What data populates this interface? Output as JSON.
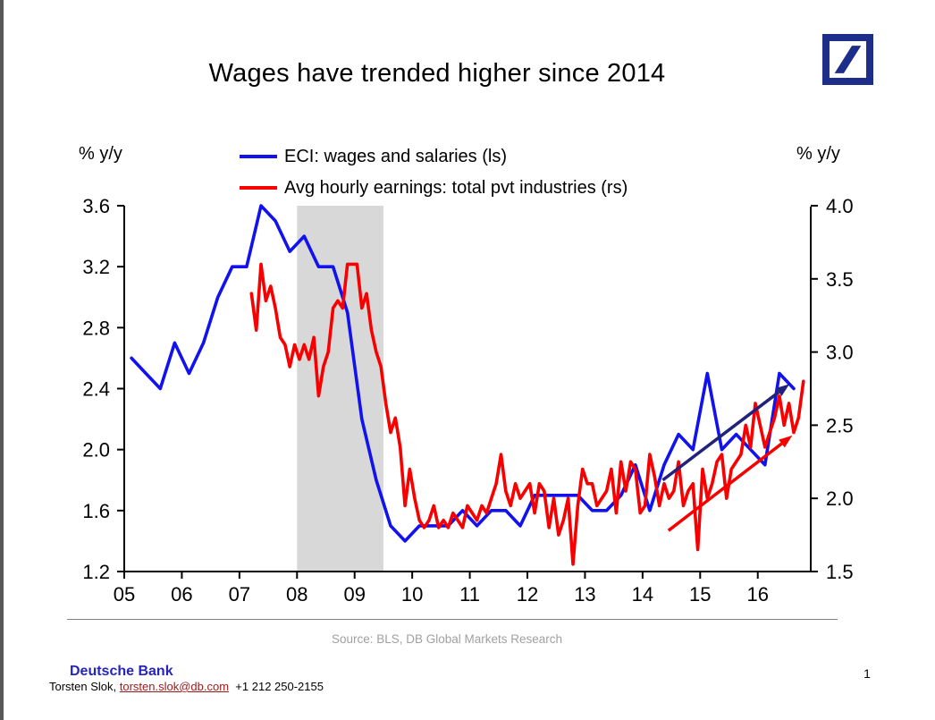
{
  "page": {
    "title": "Wages have trended higher since 2014",
    "page_number": "1"
  },
  "logo": {
    "name": "deutsche-bank-logo",
    "color": "#1C2D8A"
  },
  "legend": {
    "items": [
      {
        "label": "ECI: wages and salaries (ls)",
        "color": "#1212EE"
      },
      {
        "label": "Avg hourly earnings: total pvt industries (rs)",
        "color": "#F80000"
      }
    ]
  },
  "chart_data": {
    "type": "line",
    "title": "Wages have trended higher since 2014",
    "source": "Source: BLS, DB Global Markets Research",
    "grid": false,
    "legend_position": "top",
    "left_axis": {
      "unit": "% y/y",
      "range": [
        1.2,
        3.6
      ],
      "tick_values": [
        3.6,
        3.2,
        2.8,
        2.4,
        2.0,
        1.6,
        1.2
      ],
      "tick_labels": [
        "3.6",
        "3.2",
        "2.8",
        "2.4",
        "2.0",
        "1.6",
        "1.2"
      ]
    },
    "right_axis": {
      "unit": "% y/y",
      "range": [
        1.5,
        4.0
      ],
      "tick_values": [
        4.0,
        3.5,
        3.0,
        2.5,
        2.0,
        1.5
      ],
      "tick_labels": [
        "4.0",
        "3.5",
        "3.0",
        "2.5",
        "2.0",
        "1.5"
      ]
    },
    "x_axis": {
      "range": [
        2005,
        2016.92
      ],
      "tick_years": [
        2005,
        2006,
        2007,
        2008,
        2009,
        2010,
        2011,
        2012,
        2013,
        2014,
        2015,
        2016
      ],
      "labels": [
        "05",
        "06",
        "07",
        "08",
        "09",
        "10",
        "11",
        "12",
        "13",
        "14",
        "15",
        "16"
      ]
    },
    "recession_band": {
      "start": 2008.0,
      "end": 2009.5,
      "color": "#D8D8D8"
    },
    "series": [
      {
        "name": "ECI: wages and salaries (ls)",
        "axis": "left",
        "color": "#1212EE",
        "frequency": "quarterly",
        "points": [
          [
            2005.125,
            2.6
          ],
          [
            2005.375,
            2.5
          ],
          [
            2005.625,
            2.4
          ],
          [
            2005.875,
            2.7
          ],
          [
            2006.125,
            2.5
          ],
          [
            2006.375,
            2.7
          ],
          [
            2006.625,
            3.0
          ],
          [
            2006.875,
            3.2
          ],
          [
            2007.125,
            3.2
          ],
          [
            2007.375,
            3.6
          ],
          [
            2007.625,
            3.5
          ],
          [
            2007.875,
            3.3
          ],
          [
            2008.125,
            3.4
          ],
          [
            2008.375,
            3.2
          ],
          [
            2008.625,
            3.2
          ],
          [
            2008.875,
            2.9
          ],
          [
            2009.125,
            2.2
          ],
          [
            2009.375,
            1.8
          ],
          [
            2009.625,
            1.5
          ],
          [
            2009.875,
            1.4
          ],
          [
            2010.125,
            1.5
          ],
          [
            2010.375,
            1.5
          ],
          [
            2010.625,
            1.5
          ],
          [
            2010.875,
            1.6
          ],
          [
            2011.125,
            1.5
          ],
          [
            2011.375,
            1.6
          ],
          [
            2011.625,
            1.6
          ],
          [
            2011.875,
            1.5
          ],
          [
            2012.125,
            1.7
          ],
          [
            2012.375,
            1.7
          ],
          [
            2012.625,
            1.7
          ],
          [
            2012.875,
            1.7
          ],
          [
            2013.125,
            1.6
          ],
          [
            2013.375,
            1.6
          ],
          [
            2013.625,
            1.7
          ],
          [
            2013.875,
            1.9
          ],
          [
            2014.125,
            1.6
          ],
          [
            2014.375,
            1.9
          ],
          [
            2014.625,
            2.1
          ],
          [
            2014.875,
            2.0
          ],
          [
            2015.125,
            2.5
          ],
          [
            2015.375,
            2.0
          ],
          [
            2015.625,
            2.1
          ],
          [
            2015.875,
            2.0
          ],
          [
            2016.125,
            1.9
          ],
          [
            2016.375,
            2.5
          ],
          [
            2016.625,
            2.4
          ]
        ]
      },
      {
        "name": "Avg hourly earnings: total pvt industries (rs)",
        "axis": "right",
        "color": "#F80000",
        "frequency": "monthly",
        "points": [
          [
            2007.208,
            3.4
          ],
          [
            2007.292,
            3.15
          ],
          [
            2007.375,
            3.6
          ],
          [
            2007.458,
            3.35
          ],
          [
            2007.542,
            3.45
          ],
          [
            2007.625,
            3.3
          ],
          [
            2007.708,
            3.1
          ],
          [
            2007.792,
            3.05
          ],
          [
            2007.875,
            2.9
          ],
          [
            2007.958,
            3.05
          ],
          [
            2008.042,
            2.95
          ],
          [
            2008.125,
            3.05
          ],
          [
            2008.208,
            2.95
          ],
          [
            2008.292,
            3.1
          ],
          [
            2008.375,
            2.7
          ],
          [
            2008.458,
            2.9
          ],
          [
            2008.542,
            3.0
          ],
          [
            2008.625,
            3.3
          ],
          [
            2008.708,
            3.35
          ],
          [
            2008.792,
            3.3
          ],
          [
            2008.875,
            3.6
          ],
          [
            2008.958,
            3.6
          ],
          [
            2009.042,
            3.6
          ],
          [
            2009.125,
            3.3
          ],
          [
            2009.208,
            3.4
          ],
          [
            2009.292,
            3.15
          ],
          [
            2009.375,
            3.0
          ],
          [
            2009.458,
            2.9
          ],
          [
            2009.542,
            2.65
          ],
          [
            2009.625,
            2.45
          ],
          [
            2009.708,
            2.55
          ],
          [
            2009.792,
            2.35
          ],
          [
            2009.875,
            1.95
          ],
          [
            2009.958,
            2.2
          ],
          [
            2010.042,
            2.0
          ],
          [
            2010.125,
            1.85
          ],
          [
            2010.208,
            1.8
          ],
          [
            2010.292,
            1.85
          ],
          [
            2010.375,
            1.95
          ],
          [
            2010.458,
            1.8
          ],
          [
            2010.542,
            1.85
          ],
          [
            2010.625,
            1.8
          ],
          [
            2010.708,
            1.9
          ],
          [
            2010.792,
            1.85
          ],
          [
            2010.875,
            1.8
          ],
          [
            2010.958,
            1.95
          ],
          [
            2011.042,
            1.9
          ],
          [
            2011.125,
            1.85
          ],
          [
            2011.208,
            1.95
          ],
          [
            2011.292,
            1.9
          ],
          [
            2011.375,
            2.0
          ],
          [
            2011.458,
            2.1
          ],
          [
            2011.542,
            2.3
          ],
          [
            2011.625,
            2.05
          ],
          [
            2011.708,
            1.95
          ],
          [
            2011.792,
            2.1
          ],
          [
            2011.875,
            2.0
          ],
          [
            2011.958,
            2.05
          ],
          [
            2012.042,
            2.1
          ],
          [
            2012.125,
            1.9
          ],
          [
            2012.208,
            2.1
          ],
          [
            2012.292,
            2.05
          ],
          [
            2012.375,
            1.8
          ],
          [
            2012.458,
            2.0
          ],
          [
            2012.542,
            1.75
          ],
          [
            2012.625,
            1.85
          ],
          [
            2012.708,
            2.0
          ],
          [
            2012.792,
            1.55
          ],
          [
            2012.875,
            1.95
          ],
          [
            2012.958,
            2.2
          ],
          [
            2013.042,
            2.1
          ],
          [
            2013.125,
            2.1
          ],
          [
            2013.208,
            1.95
          ],
          [
            2013.292,
            2.0
          ],
          [
            2013.375,
            2.05
          ],
          [
            2013.458,
            2.2
          ],
          [
            2013.542,
            1.9
          ],
          [
            2013.625,
            2.25
          ],
          [
            2013.708,
            2.05
          ],
          [
            2013.792,
            2.25
          ],
          [
            2013.875,
            2.2
          ],
          [
            2013.958,
            1.9
          ],
          [
            2014.042,
            1.95
          ],
          [
            2014.125,
            2.3
          ],
          [
            2014.208,
            2.15
          ],
          [
            2014.292,
            1.95
          ],
          [
            2014.375,
            2.1
          ],
          [
            2014.458,
            2.0
          ],
          [
            2014.542,
            2.05
          ],
          [
            2014.625,
            2.25
          ],
          [
            2014.708,
            1.95
          ],
          [
            2014.792,
            2.05
          ],
          [
            2014.875,
            2.1
          ],
          [
            2014.958,
            1.65
          ],
          [
            2015.042,
            2.2
          ],
          [
            2015.125,
            2.0
          ],
          [
            2015.208,
            2.1
          ],
          [
            2015.292,
            2.25
          ],
          [
            2015.375,
            2.3
          ],
          [
            2015.458,
            2.0
          ],
          [
            2015.542,
            2.2
          ],
          [
            2015.625,
            2.25
          ],
          [
            2015.708,
            2.3
          ],
          [
            2015.792,
            2.5
          ],
          [
            2015.875,
            2.35
          ],
          [
            2015.958,
            2.65
          ],
          [
            2016.042,
            2.5
          ],
          [
            2016.125,
            2.35
          ],
          [
            2016.208,
            2.45
          ],
          [
            2016.292,
            2.55
          ],
          [
            2016.375,
            2.7
          ],
          [
            2016.458,
            2.5
          ],
          [
            2016.542,
            2.65
          ],
          [
            2016.625,
            2.45
          ],
          [
            2016.708,
            2.55
          ],
          [
            2016.792,
            2.8
          ]
        ]
      }
    ],
    "trend_arrows": [
      {
        "axis": "left",
        "color": "#22227A",
        "from": [
          2014.35,
          1.8
        ],
        "to": [
          2016.55,
          2.43
        ]
      },
      {
        "axis": "right",
        "color": "#F80000",
        "from": [
          2014.45,
          1.78
        ],
        "to": [
          2016.6,
          2.43
        ]
      }
    ]
  },
  "footer": {
    "bank": "Deutsche Bank",
    "contact_name": "Torsten Slok, ",
    "email": "torsten.slok@db.com",
    "phone": "  +1 212 250-2155",
    "page_number": "1"
  }
}
